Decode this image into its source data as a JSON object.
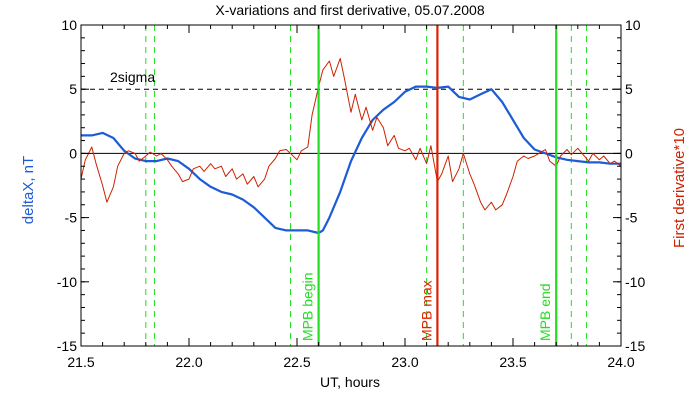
{
  "chart_data": {
    "type": "line",
    "title": "X-variations and first derivative, 05.07.2008",
    "xlabel": "UT, hours",
    "ylabel": "deltaX, nT",
    "ylabel_right": "First derivative*10",
    "xlim": [
      21.5,
      24.0
    ],
    "ylim": [
      -15,
      10
    ],
    "ylim_right": [
      -15,
      10
    ],
    "xticks": [
      "21.5",
      "22.0",
      "22.5",
      "23.0",
      "23.5",
      "24.0"
    ],
    "yticks": [
      "10",
      "5",
      "0",
      "-5",
      "-10",
      "-15"
    ],
    "grid": false,
    "series": [
      {
        "name": "deltaX, nT",
        "axis": "left",
        "color": "#1e5bd6",
        "x": [
          21.5,
          21.55,
          21.6,
          21.65,
          21.7,
          21.75,
          21.8,
          21.85,
          21.9,
          21.95,
          22.0,
          22.05,
          22.1,
          22.15,
          22.2,
          22.25,
          22.3,
          22.35,
          22.4,
          22.45,
          22.5,
          22.55,
          22.6,
          22.62,
          22.65,
          22.7,
          22.75,
          22.8,
          22.85,
          22.9,
          22.95,
          23.0,
          23.05,
          23.1,
          23.15,
          23.2,
          23.25,
          23.3,
          23.35,
          23.4,
          23.45,
          23.5,
          23.55,
          23.6,
          23.65,
          23.7,
          23.75,
          23.8,
          23.85,
          23.9,
          23.95,
          24.0
        ],
        "values": [
          1.4,
          1.4,
          1.6,
          1.2,
          0.2,
          -0.4,
          -0.6,
          -0.6,
          -0.4,
          -0.6,
          -1.2,
          -2.0,
          -2.6,
          -3.0,
          -3.2,
          -3.6,
          -4.2,
          -5.0,
          -5.8,
          -6.0,
          -6.0,
          -6.0,
          -6.2,
          -6.0,
          -5.0,
          -3.0,
          -0.6,
          1.2,
          2.6,
          3.4,
          4.0,
          4.8,
          5.2,
          5.2,
          5.1,
          5.2,
          4.4,
          4.2,
          4.6,
          5.0,
          4.0,
          2.6,
          1.2,
          0.3,
          0.0,
          -0.3,
          -0.5,
          -0.6,
          -0.7,
          -0.7,
          -0.8,
          -0.8
        ]
      },
      {
        "name": "First derivative*10",
        "axis": "right",
        "color": "#cc2200",
        "x": [
          21.5,
          21.52,
          21.55,
          21.57,
          21.6,
          21.62,
          21.65,
          21.67,
          21.7,
          21.72,
          21.75,
          21.77,
          21.8,
          21.82,
          21.85,
          21.87,
          21.9,
          21.92,
          21.95,
          21.97,
          22.0,
          22.02,
          22.05,
          22.07,
          22.1,
          22.12,
          22.15,
          22.17,
          22.2,
          22.22,
          22.25,
          22.27,
          22.3,
          22.32,
          22.35,
          22.37,
          22.4,
          22.42,
          22.45,
          22.47,
          22.5,
          22.52,
          22.55,
          22.57,
          22.6,
          22.62,
          22.65,
          22.67,
          22.7,
          22.72,
          22.75,
          22.77,
          22.8,
          22.82,
          22.85,
          22.87,
          22.9,
          22.92,
          22.95,
          22.97,
          23.0,
          23.02,
          23.05,
          23.07,
          23.1,
          23.12,
          23.15,
          23.17,
          23.2,
          23.22,
          23.25,
          23.27,
          23.3,
          23.32,
          23.35,
          23.37,
          23.4,
          23.42,
          23.45,
          23.47,
          23.5,
          23.52,
          23.55,
          23.57,
          23.6,
          23.62,
          23.65,
          23.67,
          23.7,
          23.72,
          23.75,
          23.77,
          23.8,
          23.82,
          23.85,
          23.87,
          23.9,
          23.92,
          23.95,
          23.97,
          24.0
        ],
        "values": [
          -2.0,
          -0.5,
          0.5,
          -0.8,
          -2.5,
          -3.8,
          -2.6,
          -1.0,
          0.0,
          0.2,
          0.0,
          -0.6,
          -0.2,
          0.1,
          -0.2,
          0.0,
          -0.5,
          -1.0,
          -1.6,
          -2.2,
          -2.0,
          -1.2,
          -1.0,
          -1.4,
          -0.8,
          -1.2,
          -1.0,
          -1.8,
          -1.2,
          -2.0,
          -1.6,
          -2.4,
          -1.8,
          -2.6,
          -2.0,
          -1.0,
          -0.4,
          0.2,
          0.3,
          0.0,
          -0.5,
          0.2,
          0.5,
          3.0,
          5.2,
          6.5,
          7.2,
          6.0,
          7.4,
          5.8,
          3.2,
          4.6,
          2.6,
          3.6,
          1.8,
          2.8,
          2.0,
          0.6,
          1.4,
          0.4,
          0.2,
          0.4,
          -0.5,
          0.4,
          -0.8,
          0.6,
          -2.2,
          -1.6,
          -0.2,
          -2.2,
          -1.2,
          0.0,
          -1.6,
          -2.4,
          -3.8,
          -4.4,
          -3.8,
          -4.4,
          -4.0,
          -3.2,
          -1.8,
          -0.6,
          -0.2,
          -0.4,
          -0.2,
          0.0,
          0.3,
          -0.6,
          -1.0,
          -0.2,
          0.3,
          -0.1,
          0.4,
          0.0,
          -0.6,
          0.0,
          -0.5,
          -0.2,
          -0.8,
          -0.6,
          -1.0
        ]
      }
    ],
    "reference_lines": {
      "zero": {
        "value": 0,
        "style": "solid",
        "color": "#000000"
      },
      "two_sigma": {
        "value": 5,
        "style": "dashed",
        "color": "#000000",
        "label": "2sigma"
      }
    },
    "vertical_markers": [
      {
        "x": 22.6,
        "label": "MPB begin",
        "color": "#22dd22",
        "style": "solid"
      },
      {
        "x": 23.15,
        "label": "MPB max",
        "color": "#dd2200",
        "style": "solid"
      },
      {
        "x": 23.7,
        "label": "MPB end",
        "color": "#22dd22",
        "style": "solid"
      }
    ],
    "dashed_markers": [
      {
        "x": 21.8,
        "color": "#22dd22"
      },
      {
        "x": 21.84,
        "color": "#22dd22"
      },
      {
        "x": 22.47,
        "color": "#22dd22"
      },
      {
        "x": 23.1,
        "color": "#22dd22"
      },
      {
        "x": 23.27,
        "color": "#22dd22"
      },
      {
        "x": 23.77,
        "color": "#22dd22"
      },
      {
        "x": 23.84,
        "color": "#22dd22"
      }
    ]
  }
}
